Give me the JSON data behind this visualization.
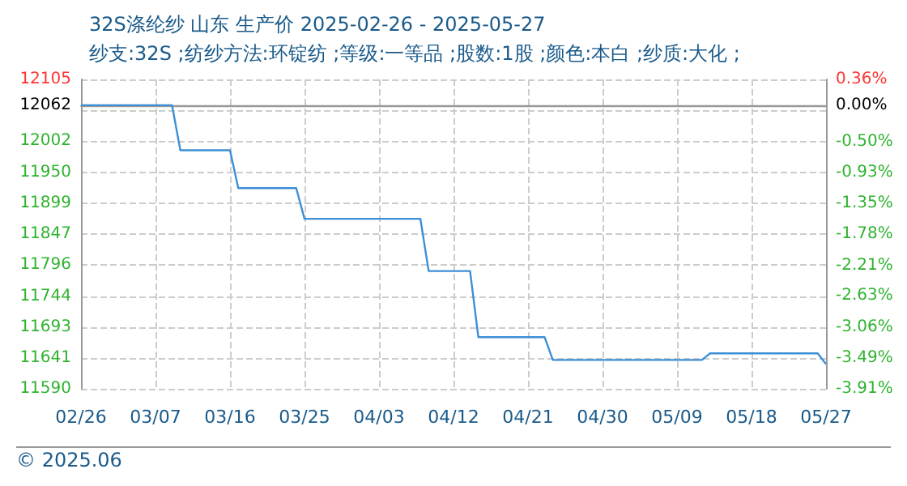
{
  "chart_data": {
    "type": "step",
    "title": "32S涤纶纱 山东 生产价 2025-02-26 - 2025-05-27",
    "subtitle": "纱支:32S ;纺纱方法:环锭纺 ;等级:一等品 ;股数:1股 ;颜色:本白 ;纱质:大化 ;",
    "x": [
      "--02-26",
      "--03-09",
      "--03-10",
      "--03-16",
      "--03-17",
      "--03-24",
      "--03-25",
      "--04-08",
      "--04-09",
      "--04-14",
      "--04-15",
      "--04-23",
      "--04-24",
      "--05-12",
      "--05-13",
      "--05-26",
      "--05-27"
    ],
    "series": [
      {
        "color": "#3c8fd6",
        "values": [
          12062,
          12062,
          11987,
          11987,
          11924,
          11924,
          11873,
          11873,
          11786,
          11786,
          11676,
          11676,
          11638,
          11638,
          11649,
          11649,
          11631
        ]
      }
    ],
    "xlim": [
      "--02-26",
      "--05-27"
    ],
    "xticks": [
      {
        "value": "--02-26",
        "label": "02/26"
      },
      {
        "value": "--03-07",
        "label": "03/07"
      },
      {
        "value": "--03-16",
        "label": "03/16"
      },
      {
        "value": "--03-25",
        "label": "03/25"
      },
      {
        "value": "--04-03",
        "label": "04/03"
      },
      {
        "value": "--04-12",
        "label": "04/12"
      },
      {
        "value": "--04-21",
        "label": "04/21"
      },
      {
        "value": "--04-30",
        "label": "04/30"
      },
      {
        "value": "--05-09",
        "label": "05/09"
      },
      {
        "value": "--05-18",
        "label": "05/18"
      },
      {
        "value": "--05-27",
        "label": "05/27"
      }
    ],
    "ylim": [
      11590,
      12105
    ],
    "yticks": [
      11590,
      11641,
      11693,
      11744,
      11796,
      11847,
      11899,
      11950,
      12002,
      {
        "value": 12053.5,
        "label": null
      },
      12062,
      12105
    ],
    "y2lim": [
      -3.91,
      0.36
    ],
    "y2ticks": [
      {
        "value": -3.91,
        "label": "-3.91%"
      },
      {
        "value": -3.49,
        "label": "-3.49%"
      },
      {
        "value": -3.06,
        "label": "-3.06%"
      },
      {
        "value": -2.63,
        "label": "-2.63%"
      },
      {
        "value": -2.21,
        "label": "-2.21%"
      },
      {
        "value": -1.78,
        "label": "-1.78%"
      },
      {
        "value": -1.35,
        "label": "-1.35%"
      },
      {
        "value": -0.93,
        "label": "-0.93%"
      },
      {
        "value": -0.5,
        "label": "-0.50%"
      },
      {
        "value": 0,
        "label": "0.00%"
      },
      {
        "value": 0.36,
        "label": "0.36%"
      }
    ],
    "ref_lines": [
      {
        "axis": "y",
        "value": 12062,
        "color": "#999999"
      }
    ],
    "grid": true,
    "marker": "none",
    "line_style": "solid",
    "annotations": [
      "© 2025.06"
    ]
  }
}
